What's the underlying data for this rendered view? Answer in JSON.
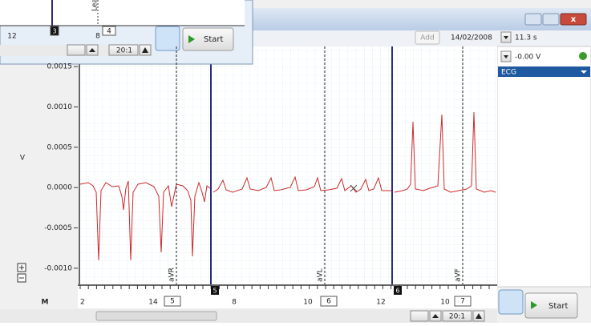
{
  "window": {
    "add": "Add",
    "date": "14/02/2008",
    "duration": "11.3 s",
    "start": "Start",
    "zoom": "20:1"
  },
  "mini": {
    "ticks": [
      "12",
      "8"
    ],
    "pages": [
      "3",
      "4"
    ],
    "lead": "Lead",
    "start": "Start",
    "zoom": "20:1"
  },
  "channel": {
    "value": "-0.00 V",
    "name": "ECG"
  },
  "y_axis": {
    "label": "V",
    "ylim": [
      -0.0012,
      0.00175
    ],
    "ticks": [
      0.0015,
      {
        "value": 0.001,
        "label": "0.0010"
      },
      0.0005,
      {
        "value": 0,
        "label": "0.0000"
      },
      -0.0005,
      {
        "value": -0.001,
        "label": "-0.0010"
      }
    ]
  },
  "x_axis": {
    "ticks": [
      "2",
      "14",
      "8",
      "10",
      "12",
      "10"
    ],
    "pages": [
      "5",
      "6",
      "7"
    ],
    "markers": [
      "5",
      "6"
    ]
  },
  "events": [
    "aVR",
    "aVL",
    "aVF"
  ],
  "m_label": "M"
}
